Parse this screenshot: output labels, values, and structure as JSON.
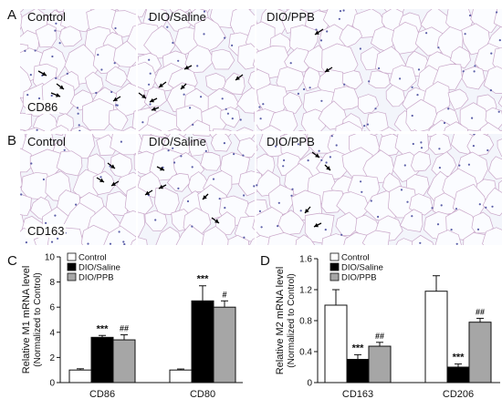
{
  "panels": {
    "A": {
      "letter": "A",
      "groups": [
        "Control",
        "DIO/Saline",
        "DIO/PPB"
      ],
      "stain": "CD86"
    },
    "B": {
      "letter": "B",
      "groups": [
        "Control",
        "DIO/Saline",
        "DIO/PPB"
      ],
      "stain": "CD163"
    },
    "C": {
      "letter": "C"
    },
    "D": {
      "letter": "D"
    }
  },
  "colors": {
    "control": "#ffffff",
    "dio_saline": "#000000",
    "dio_ppb": "#a6a6a6",
    "tissue_line": "#c9a7c9",
    "nuclei": "#5b5fa8",
    "arrow": "#000000"
  },
  "chart_data": [
    {
      "type": "bar",
      "panel": "C",
      "ylabel": "Relative M1 mRNA level",
      "ylabel2": "(Normalized to Control)",
      "ylim": [
        0,
        10
      ],
      "yticks": [
        "0",
        "2",
        "4",
        "6",
        "8",
        "10"
      ],
      "categories": [
        "CD86",
        "CD80"
      ],
      "legend": [
        "Control",
        "DIO/Saline",
        "DIO/PPB"
      ],
      "series": [
        {
          "name": "Control",
          "values": [
            1.0,
            1.0
          ],
          "errors": [
            0.1,
            0.08
          ],
          "annotations": [
            "",
            ""
          ]
        },
        {
          "name": "DIO/Saline",
          "values": [
            3.6,
            6.5
          ],
          "errors": [
            0.15,
            1.2
          ],
          "annotations": [
            "***",
            "***"
          ]
        },
        {
          "name": "DIO/PPB",
          "values": [
            3.4,
            6.0
          ],
          "errors": [
            0.4,
            0.5
          ],
          "annotations": [
            "##",
            "#"
          ]
        }
      ]
    },
    {
      "type": "bar",
      "panel": "D",
      "ylabel": "Relative M2 mRNA level",
      "ylabel2": "(Normalized to Control)",
      "ylim": [
        0,
        1.6
      ],
      "yticks": [
        "0",
        "0.4",
        "0.8",
        "1.2",
        "1.6"
      ],
      "categories": [
        "CD163",
        "CD206"
      ],
      "legend": [
        "Control",
        "DIO/Saline",
        "DIO/PPB"
      ],
      "series": [
        {
          "name": "Control",
          "values": [
            1.0,
            1.18
          ],
          "errors": [
            0.2,
            0.2
          ],
          "annotations": [
            "",
            ""
          ]
        },
        {
          "name": "DIO/Saline",
          "values": [
            0.3,
            0.2
          ],
          "errors": [
            0.06,
            0.04
          ],
          "annotations": [
            "***",
            "***"
          ]
        },
        {
          "name": "DIO/PPB",
          "values": [
            0.47,
            0.78
          ],
          "errors": [
            0.05,
            0.05
          ],
          "annotations": [
            "##",
            "##"
          ]
        }
      ]
    }
  ]
}
